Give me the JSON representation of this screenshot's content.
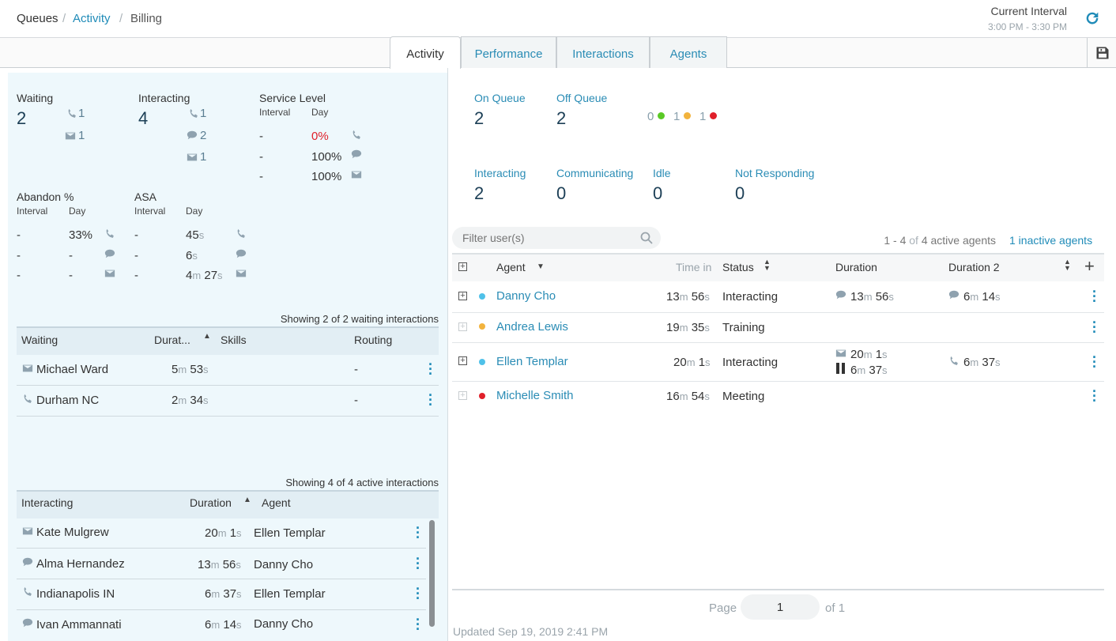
{
  "breadcrumb": {
    "root": "Queues",
    "activity": "Activity",
    "queue": "Billing",
    "sep": "/"
  },
  "interval": {
    "label": "Current Interval",
    "range": "3:00 PM - 3:30 PM"
  },
  "tabs": [
    "Activity",
    "Performance",
    "Interactions",
    "Agents"
  ],
  "left": {
    "waiting": {
      "label": "Waiting",
      "value": "2",
      "calls": "1",
      "emails": "1"
    },
    "interacting": {
      "label": "Interacting",
      "value": "4",
      "calls": "1",
      "chats": "2",
      "emails": "1"
    },
    "service_level": {
      "label": "Service Level",
      "interval": "Interval",
      "day": "Day",
      "rows": [
        {
          "interval": "-",
          "day": "0%"
        },
        {
          "interval": "-",
          "day": "100%"
        },
        {
          "interval": "-",
          "day": "100%"
        }
      ]
    },
    "abandon": {
      "label": "Abandon %",
      "interval": "Interval",
      "day": "Day",
      "rows": [
        {
          "interval": "-",
          "day": "33%"
        },
        {
          "interval": "-",
          "day": "-"
        },
        {
          "interval": "-",
          "day": "-"
        }
      ]
    },
    "asa": {
      "label": "ASA",
      "interval": "Interval",
      "day": "Day",
      "rows": [
        {
          "interval": "-",
          "d1": "45",
          "u1": "s"
        },
        {
          "interval": "-",
          "d1": "6",
          "u1": "s"
        },
        {
          "interval": "-",
          "d1": "4",
          "u1": "m",
          "d2": "27",
          "u2": "s"
        }
      ]
    },
    "waiting_table": {
      "showing": "Showing 2 of 2 waiting interactions",
      "headers": {
        "waiting": "Waiting",
        "duration": "Durat...",
        "skills": "Skills",
        "routing": "Routing"
      },
      "rows": [
        {
          "name": "Michael Ward",
          "m": "5",
          "mu": "m",
          "s": "53",
          "su": "s",
          "routing": "-"
        },
        {
          "name": "Durham NC",
          "m": "2",
          "mu": "m",
          "s": "34",
          "su": "s",
          "routing": "-"
        }
      ]
    },
    "interacting_table": {
      "showing": "Showing 4 of 4 active interactions",
      "headers": {
        "interacting": "Interacting",
        "duration": "Duration",
        "agent": "Agent"
      },
      "rows": [
        {
          "name": "Kate Mulgrew",
          "m": "20",
          "s": "1",
          "agent": "Ellen Templar"
        },
        {
          "name": "Alma Hernandez",
          "m": "13",
          "s": "56",
          "agent": "Danny Cho"
        },
        {
          "name": "Indianapolis IN",
          "m": "6",
          "s": "37",
          "agent": "Ellen Templar"
        },
        {
          "name": "Ivan Ammannati",
          "m": "6",
          "s": "14",
          "agent": "Danny Cho"
        }
      ]
    }
  },
  "right": {
    "on_queue": {
      "label": "On Queue",
      "value": "2"
    },
    "off_queue": {
      "label": "Off Queue",
      "value": "2"
    },
    "status_counts": {
      "green": "0",
      "yellow": "1",
      "red": "1"
    },
    "interacting": {
      "label": "Interacting",
      "value": "2"
    },
    "communicating": {
      "label": "Communicating",
      "value": "0"
    },
    "idle": {
      "label": "Idle",
      "value": "0"
    },
    "not_responding": {
      "label": "Not Responding",
      "value": "0"
    },
    "filter_placeholder": "Filter user(s)",
    "active_summary": {
      "range": "1 - 4",
      "of": "of",
      "count": "4 active agents"
    },
    "inactive_link": "1 inactive agents",
    "headers": {
      "agent": "Agent",
      "time_in": "Time in",
      "status": "Status",
      "duration": "Duration",
      "duration2": "Duration 2"
    },
    "agents": [
      {
        "name": "Danny Cho",
        "tm": "13",
        "ts": "56",
        "status": "Interacting",
        "d_m": "13",
        "d_s": "56",
        "d2_m": "6",
        "d2_s": "14"
      },
      {
        "name": "Andrea Lewis",
        "tm": "19",
        "ts": "35",
        "status": "Training"
      },
      {
        "name": "Ellen Templar",
        "tm": "20",
        "ts": "1",
        "status": "Interacting",
        "d_m": "20",
        "d_s": "1",
        "dh_m": "6",
        "dh_s": "37",
        "d2_m": "6",
        "d2_s": "37"
      },
      {
        "name": "Michelle Smith",
        "tm": "16",
        "ts": "54",
        "status": "Meeting"
      }
    ],
    "pager": {
      "page_label": "Page",
      "page": "1",
      "of_label": "of",
      "total": "1"
    },
    "updated": "Updated Sep 19, 2019 2:41 PM"
  },
  "units": {
    "m": "m",
    "s": "s"
  },
  "colors": {
    "accent": "#1f8bb8",
    "green": "#5ac926",
    "yellow": "#f2b33d",
    "red": "#e0202a",
    "online": "#4fc1e9"
  }
}
